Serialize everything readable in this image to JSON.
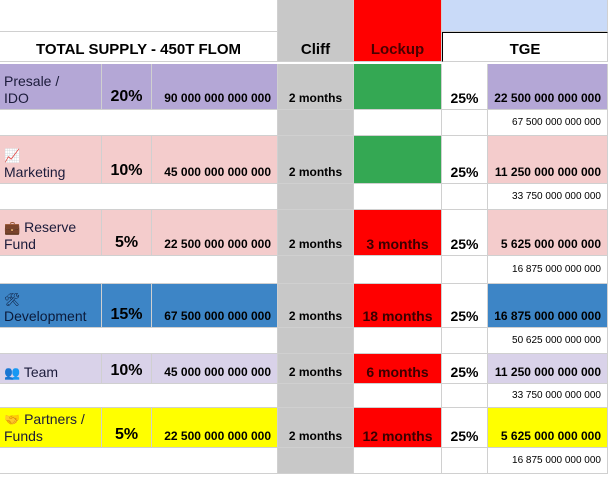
{
  "header": {
    "total_supply": "TOTAL SUPPLY - 450T FLOM",
    "cliff": "Cliff",
    "lockup": "Lockup",
    "tge": "TGE"
  },
  "colors": {
    "presale": "#b4a7d6",
    "marketing": "#f4cccc",
    "reserve": "#f4cccc",
    "development": "#3d85c6",
    "team": "#d9d2e9",
    "partners": "#ffff00",
    "lockup_green": "#34a853",
    "lockup_red": "#ff0000",
    "cliff_gray": "#c8c8c8",
    "tge_header": "#c9daf8"
  },
  "rows": [
    {
      "id": "presale",
      "icon": "",
      "name_line1": "Presale /",
      "name_line2": "IDO",
      "percent": "20%",
      "amount": "90 000 000 000 000",
      "cliff": "2 months",
      "lockup": "",
      "lockup_color": "green",
      "tge_percent": "25%",
      "tge_amount": "22 500 000 000 000",
      "remaining": "67 500 000 000 000"
    },
    {
      "id": "marketing",
      "icon": "chart-increasing-icon",
      "name_line1": "",
      "name_line2": "Marketing",
      "percent": "10%",
      "amount": "45 000 000 000 000",
      "cliff": "2 months",
      "lockup": "",
      "lockup_color": "green",
      "tge_percent": "25%",
      "tge_amount": "11 250 000 000 000",
      "remaining": "33 750 000 000 000"
    },
    {
      "id": "reserve",
      "icon": "briefcase-icon",
      "name_line1": "Reserve",
      "name_line2": "Fund",
      "percent": "5%",
      "amount": "22 500 000 000 000",
      "cliff": "2 months",
      "lockup": "3 months",
      "lockup_color": "red",
      "tge_percent": "25%",
      "tge_amount": "5 625 000 000 000",
      "remaining": "16 875 000 000 000"
    },
    {
      "id": "development",
      "icon": "hammer-and-wrench-icon",
      "name_line1": "",
      "name_line2": "Development",
      "percent": "15%",
      "amount": "67 500 000 000 000",
      "cliff": "2 months",
      "lockup": "18 months",
      "lockup_color": "red",
      "tge_percent": "25%",
      "tge_amount": "16 875 000 000 000",
      "remaining": "50 625 000 000 000"
    },
    {
      "id": "team",
      "icon": "people-icon",
      "name_line1": "Team",
      "name_line2": "",
      "percent": "10%",
      "amount": "45 000 000 000 000",
      "cliff": "2 months",
      "lockup": "6 months",
      "lockup_color": "red",
      "tge_percent": "25%",
      "tge_amount": "11 250 000 000 000",
      "remaining": "33 750 000 000 000"
    },
    {
      "id": "partners",
      "icon": "handshake-icon",
      "name_line1": "Partners /",
      "name_line2": "Funds",
      "percent": "5%",
      "amount": "22 500 000 000 000",
      "cliff": "2 months",
      "lockup": "12 months",
      "lockup_color": "red",
      "tge_percent": "25%",
      "tge_amount": "5 625 000 000 000",
      "remaining": "16 875 000 000 000"
    }
  ]
}
